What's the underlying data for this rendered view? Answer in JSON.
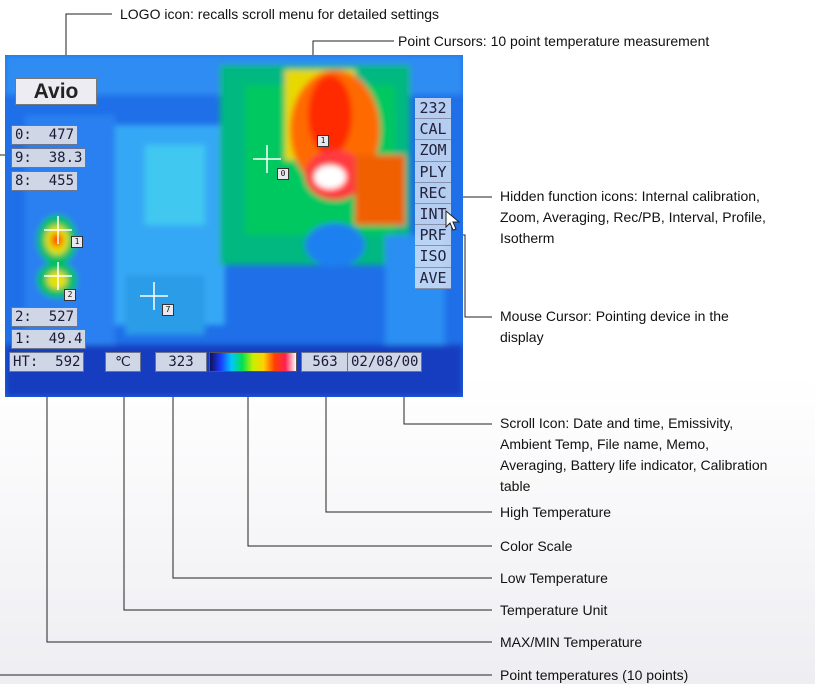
{
  "screen": {
    "logo_text": "Avio",
    "point_readouts_top": [
      "0:  477",
      "9:  38.3",
      "8:  455"
    ],
    "point_readouts_bottom": [
      "2:  527",
      "1:  49.4"
    ],
    "function_icons": [
      "232",
      "CAL",
      "ZOM",
      "PLY",
      "REC",
      "INT",
      "PRF",
      "ISO",
      "AVE"
    ],
    "point_markers": [
      "1",
      "2",
      "3",
      "7",
      "0"
    ],
    "bottom_bar": {
      "max_min": "HT:  592",
      "unit_icon": "℃",
      "low_temp": "323",
      "high_temp": "563",
      "date": "02/08/00"
    }
  },
  "callouts": {
    "logo": "LOGO icon: recalls scroll menu for detailed settings",
    "point_cursors": "Point Cursors: 10 point temperature measurement",
    "hidden_functions": [
      "Hidden function icons: Internal calibration,",
      "Zoom, Averaging, Rec/PB, Interval, Profile,",
      "Isotherm"
    ],
    "mouse_cursor": [
      "Mouse Cursor: Pointing device in the",
      "display"
    ],
    "scroll_icon": [
      "Scroll Icon: Date and time, Emissivity,",
      "Ambient Temp, File name, Memo,",
      "Averaging, Battery life indicator, Calibration",
      "table"
    ],
    "high_temperature": "High Temperature",
    "color_scale": "Color Scale",
    "low_temperature": "Low Temperature",
    "temperature_unit": "Temperature Unit",
    "max_min_temperature": "MAX/MIN Temperature",
    "point_temperatures": "Point temperatures (10 points)"
  },
  "colors": {
    "thermal_background": "#1f6fe8",
    "hot": "#ff3000",
    "warm": "#f0e000",
    "mid": "#00c060",
    "cool": "#00d8ff"
  }
}
